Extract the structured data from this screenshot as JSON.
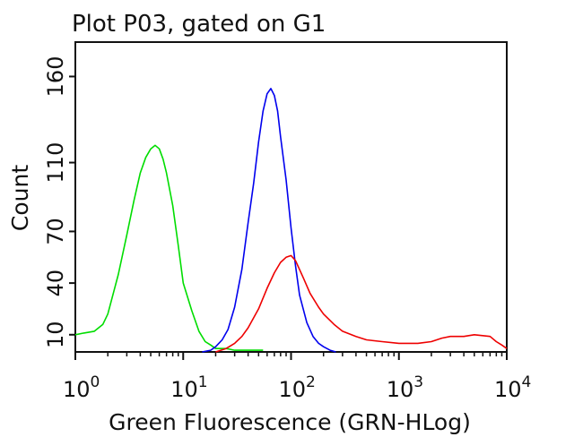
{
  "chart_data": {
    "type": "line",
    "title": "Plot P03, gated on G1",
    "xlabel": "Green Fluorescence (GRN-HLog)",
    "ylabel": "Count",
    "x_scale": "log",
    "xlim": [
      1,
      10000
    ],
    "ylim": [
      0,
      180
    ],
    "x_ticks": [
      {
        "value": 1,
        "base": "10",
        "exp": "0"
      },
      {
        "value": 10,
        "base": "10",
        "exp": "1"
      },
      {
        "value": 100,
        "base": "10",
        "exp": "2"
      },
      {
        "value": 1000,
        "base": "10",
        "exp": "3"
      },
      {
        "value": 10000,
        "base": "10",
        "exp": "4"
      }
    ],
    "y_ticks": [
      10,
      40,
      70,
      110,
      160
    ],
    "series": [
      {
        "color": "#00dd00",
        "x": [
          1,
          1.2,
          1.5,
          1.8,
          2.0,
          2.5,
          3.0,
          3.5,
          4.0,
          4.5,
          5.0,
          5.5,
          6.0,
          6.5,
          7.0,
          8.0,
          9.0,
          10,
          12,
          14,
          16,
          18,
          20,
          25,
          30,
          40,
          55
        ],
        "y": [
          10,
          11,
          12,
          16,
          22,
          45,
          68,
          88,
          104,
          113,
          118,
          120,
          118,
          112,
          104,
          85,
          62,
          40,
          24,
          12,
          6,
          4,
          2,
          2,
          1,
          1,
          1
        ]
      },
      {
        "color": "#0000ee",
        "x": [
          15,
          18,
          20,
          23,
          26,
          30,
          35,
          40,
          45,
          50,
          55,
          60,
          65,
          70,
          75,
          80,
          90,
          100,
          110,
          120,
          140,
          160,
          180,
          200,
          230,
          260
        ],
        "y": [
          0,
          1,
          3,
          7,
          13,
          26,
          48,
          75,
          98,
          122,
          140,
          150,
          153,
          149,
          140,
          125,
          100,
          72,
          50,
          33,
          17,
          9,
          5,
          3,
          1,
          0
        ]
      },
      {
        "color": "#ee0000",
        "x": [
          20,
          25,
          30,
          35,
          40,
          50,
          60,
          70,
          80,
          90,
          100,
          110,
          130,
          150,
          180,
          200,
          250,
          300,
          400,
          500,
          700,
          1000,
          1500,
          2000,
          2500,
          3000,
          4000,
          5000,
          7000,
          8000,
          9000,
          10000
        ],
        "y": [
          0,
          2,
          5,
          9,
          14,
          25,
          37,
          46,
          52,
          55,
          56,
          53,
          43,
          34,
          26,
          22,
          16,
          12,
          9,
          7,
          6,
          5,
          5,
          6,
          8,
          9,
          9,
          10,
          9,
          6,
          4,
          2
        ]
      }
    ],
    "grid": false,
    "legend": "none"
  }
}
